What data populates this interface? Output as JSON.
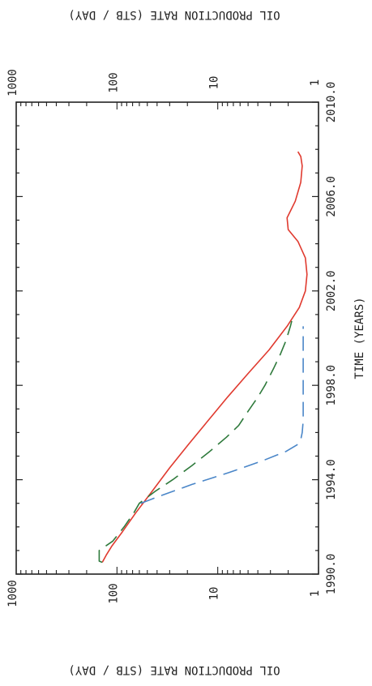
{
  "chart_data": {
    "type": "line",
    "orientation": "rotated-90-clockwise",
    "xlabel": "TIME (YEARS)",
    "ylabel_top": "OIL PRODUCTION RATE (STB / DAY)",
    "ylabel_bottom": "OIL PRODUCTION RATE (STB / DAY)",
    "xlim": [
      1990.0,
      2010.0
    ],
    "ylim": [
      1,
      1000
    ],
    "yscale": "log",
    "grid": false,
    "legend": "none",
    "x_ticks": [
      "1990.0",
      "1994.0",
      "1998.0",
      "2002.0",
      "2006.0",
      "2010.0"
    ],
    "y_ticks": [
      "1",
      "10",
      "100",
      "1000"
    ],
    "series": [
      {
        "color": "#e03a2f",
        "style": "solid",
        "x": [
          1990.5,
          1990.8,
          1991.2,
          1991.8,
          1992.6,
          1993.5,
          1994.5,
          1995.5,
          1996.5,
          1997.5,
          1998.5,
          1999.5,
          2000.5,
          2001.3,
          2002.0,
          2002.7,
          2003.4,
          2004.1,
          2004.6,
          2005.1,
          2005.8,
          2006.6,
          2007.3,
          2007.7,
          2007.9
        ],
        "y": [
          140,
          128,
          112,
          88,
          65,
          45,
          30,
          19.5,
          12.5,
          8.0,
          5.0,
          3.1,
          2.05,
          1.55,
          1.35,
          1.3,
          1.35,
          1.6,
          2.0,
          2.05,
          1.7,
          1.5,
          1.45,
          1.5,
          1.6
        ]
      },
      {
        "color": "#2f7a3c",
        "style": "dashed",
        "x": [
          1990.5,
          1990.55,
          1991.0,
          1991.4,
          1992.0,
          1992.6,
          1993.0,
          1993.5,
          1994.0,
          1994.6,
          1995.2,
          1995.8,
          1996.3,
          1996.9,
          1997.5,
          1998.0,
          1998.7,
          1999.3,
          1999.9,
          2000.5,
          2000.9
        ],
        "y": [
          140,
          150,
          150,
          110,
          85,
          68,
          60,
          42,
          28,
          18,
          12,
          8.2,
          6.2,
          5.0,
          4.0,
          3.4,
          2.8,
          2.4,
          2.1,
          1.9,
          1.8
        ]
      },
      {
        "color": "#4a86c8",
        "style": "dashed",
        "x": [
          1993.0,
          1993.3,
          1993.8,
          1994.3,
          1994.8,
          1995.2,
          1995.5,
          1995.7,
          1996.0,
          1996.5,
          1997.2,
          1998.0,
          1999.0,
          2000.0,
          2000.5
        ],
        "y": [
          58,
          38,
          18,
          7.8,
          3.6,
          2.1,
          1.6,
          1.5,
          1.45,
          1.42,
          1.42,
          1.42,
          1.42,
          1.42,
          1.42
        ]
      }
    ]
  }
}
